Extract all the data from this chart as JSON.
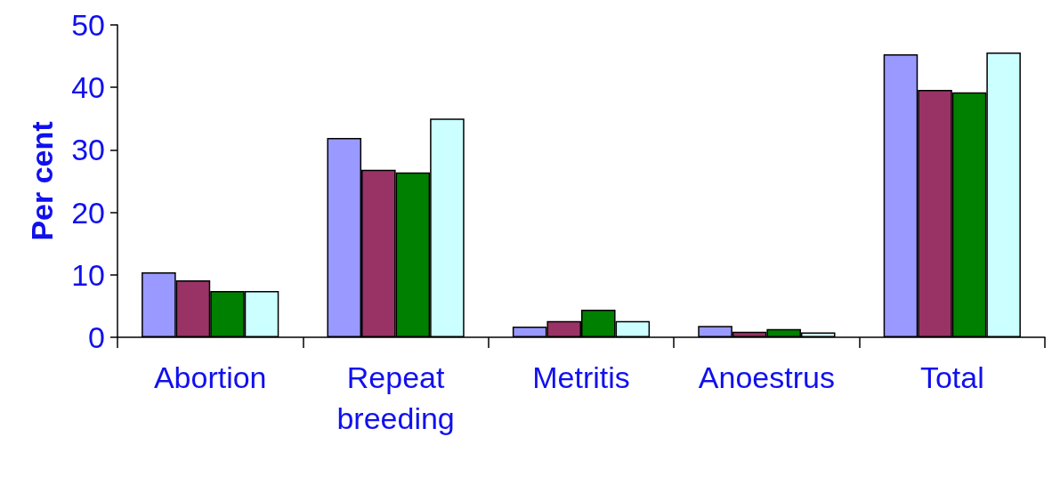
{
  "chart_data": {
    "type": "bar",
    "ylabel": "Per cent",
    "categories": [
      "Abortion",
      "Repeat\nbreeding",
      "Metritis",
      "Anoestrus",
      "Total"
    ],
    "series": [
      {
        "color": "#9999ff",
        "values": [
          10.4,
          31.9,
          1.7,
          1.8,
          45.3
        ]
      },
      {
        "color": "#993366",
        "values": [
          9.1,
          26.8,
          2.6,
          0.9,
          39.6
        ]
      },
      {
        "color": "#008000",
        "values": [
          7.4,
          26.4,
          4.4,
          1.3,
          39.2
        ]
      },
      {
        "color": "#ccffff",
        "values": [
          7.4,
          35.0,
          2.6,
          0.8,
          45.6
        ]
      }
    ],
    "ylim": [
      0,
      50
    ],
    "yticks": [
      0,
      10,
      20,
      30,
      40,
      50
    ],
    "grid": false
  }
}
